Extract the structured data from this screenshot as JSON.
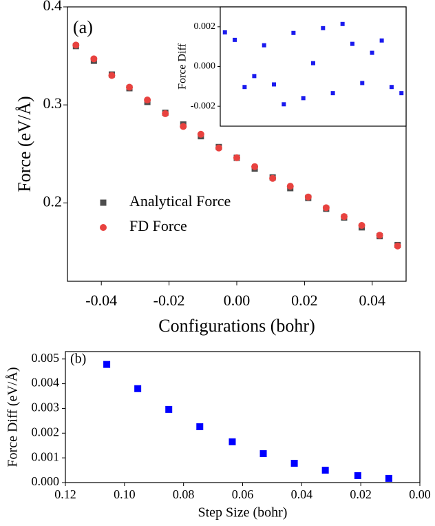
{
  "chart_data": [
    {
      "type": "scatter",
      "annotation": "(a)",
      "x_label": "Configurations (bohr)",
      "y_label": "Force (eV/Å)",
      "x": [
        -0.0475,
        -0.0422,
        -0.0369,
        -0.0317,
        -0.0264,
        -0.0211,
        -0.0158,
        -0.0106,
        -0.0053,
        0,
        0.0053,
        0.0106,
        0.0158,
        0.0211,
        0.0264,
        0.0317,
        0.0369,
        0.0422,
        0.0475
      ],
      "series": [
        {
          "name": "Analytical Force",
          "color": "#4d4d4d",
          "marker": "square",
          "values": [
            0.36,
            0.345,
            0.331,
            0.317,
            0.303,
            0.292,
            0.28,
            0.268,
            0.257,
            0.246,
            0.235,
            0.226,
            0.215,
            0.205,
            0.194,
            0.185,
            0.175,
            0.166,
            0.157
          ]
        },
        {
          "name": "FD Force",
          "color": "#e8423f",
          "marker": "circle",
          "values": [
            0.361,
            0.347,
            0.33,
            0.318,
            0.305,
            0.291,
            0.278,
            0.27,
            0.256,
            0.246,
            0.237,
            0.225,
            0.217,
            0.206,
            0.195,
            0.186,
            0.177,
            0.167,
            0.156
          ]
        }
      ],
      "xlim": [
        -0.05,
        0.05
      ],
      "xticks": [
        -0.04,
        -0.02,
        {
          "value": 0,
          "label": "0.00"
        },
        0.02,
        0.04
      ],
      "ylim": [
        0.12,
        0.4
      ],
      "yticks": [
        0.2,
        0.3,
        0.4
      ],
      "legend": "lower left"
    },
    {
      "type": "scatter",
      "y_label": "Force Diff",
      "x": [
        -0.0475,
        -0.0422,
        -0.0369,
        -0.0317,
        -0.0264,
        -0.0211,
        -0.0158,
        -0.0106,
        -0.0053,
        0,
        0.0053,
        0.0106,
        0.0158,
        0.0211,
        0.0264,
        0.0317,
        0.0369,
        0.0422,
        0.0475
      ],
      "series": [
        {
          "color": "#1a1aee",
          "marker": "square",
          "values": [
            0.00172,
            0.00134,
            -0.00103,
            -0.00048,
            0.00107,
            -0.0009,
            -0.0019,
            0.00169,
            -0.00159,
            0.00017,
            0.00193,
            -0.00134,
            0.00214,
            0.00114,
            -0.00083,
            0.00069,
            0.00131,
            -0.00103,
            -0.00134
          ]
        }
      ],
      "xlim": [
        -0.05,
        0.05
      ],
      "ylim": [
        -0.003,
        0.003
      ],
      "yticks": [
        -0.002,
        {
          "value": 0,
          "label": "0.000"
        },
        0.002
      ]
    },
    {
      "type": "scatter",
      "annotation": "(b)",
      "x_label": "Step Size (bohr)",
      "y_label": "Force Diff (eV/Å)",
      "x": [
        0.106,
        0.0955,
        0.085,
        0.0745,
        0.0635,
        0.053,
        0.0425,
        0.032,
        0.021,
        0.0105
      ],
      "series": [
        {
          "color": "#0000ff",
          "marker": "square",
          "values": [
            0.00478,
            0.0038,
            0.00296,
            0.00226,
            0.00165,
            0.00117,
            0.00078,
            0.0005,
            0.00028,
            0.00017
          ]
        }
      ],
      "xlim": [
        0.12,
        0
      ],
      "xticks": [
        0.12,
        {
          "value": 0.1,
          "label": "0.10"
        },
        0.08,
        0.06,
        0.04,
        0.02,
        {
          "value": 0,
          "label": "0.00"
        }
      ],
      "ylim": [
        0,
        0.0053
      ],
      "yticks": [
        {
          "value": 0,
          "label": "0.000"
        },
        0.001,
        0.002,
        0.003,
        0.004,
        0.005
      ]
    }
  ]
}
